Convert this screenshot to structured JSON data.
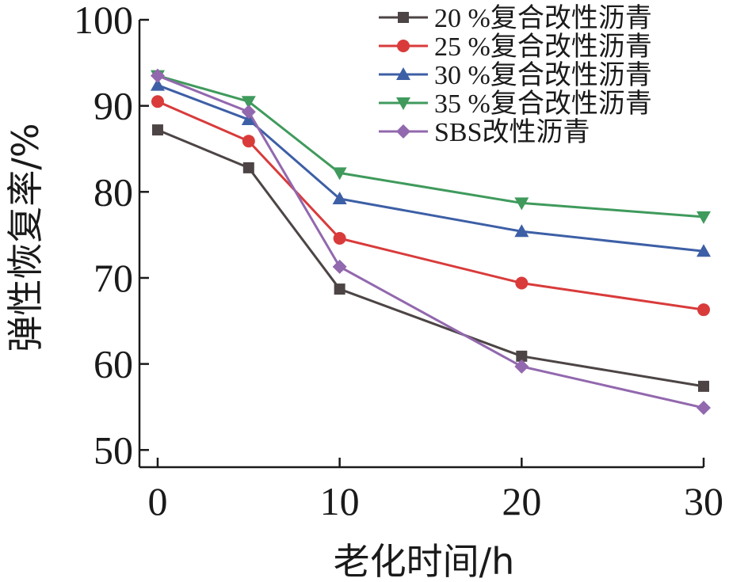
{
  "chart_data": {
    "type": "line",
    "xlabel": "老化时间/h",
    "ylabel": "弹性恢复率/%",
    "xlim": [
      -1,
      30
    ],
    "ylim": [
      48,
      100
    ],
    "x_ticks": [
      0,
      10,
      20,
      30
    ],
    "y_ticks": [
      50,
      60,
      70,
      80,
      90,
      100
    ],
    "x": [
      0,
      5,
      10,
      20,
      30
    ],
    "legend_position": "top-right",
    "grid": false,
    "series": [
      {
        "name": "20 %复合改性沥青",
        "color": "#4d4545",
        "marker": "square",
        "values": [
          87.2,
          82.8,
          68.7,
          60.9,
          57.4
        ]
      },
      {
        "name": "25 %复合改性沥青",
        "color": "#d93b3b",
        "marker": "circle",
        "values": [
          90.5,
          85.9,
          74.6,
          69.4,
          66.3
        ]
      },
      {
        "name": "30 %复合改性沥青",
        "color": "#3d5fa6",
        "marker": "triangle-up",
        "values": [
          92.4,
          88.4,
          79.2,
          75.4,
          73.1
        ]
      },
      {
        "name": "35 %复合改性沥青",
        "color": "#3f9a5c",
        "marker": "triangle-down",
        "values": [
          93.5,
          90.5,
          82.2,
          78.7,
          77.1
        ]
      },
      {
        "name": "SBS改性沥青",
        "color": "#9268ae",
        "marker": "diamond",
        "values": [
          93.5,
          89.3,
          71.3,
          59.7,
          54.9
        ]
      }
    ]
  }
}
